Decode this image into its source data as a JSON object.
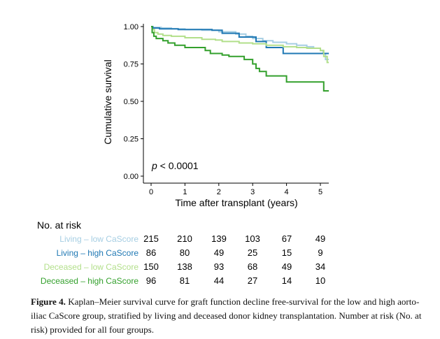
{
  "chart_data": {
    "type": "line",
    "step": true,
    "ylabel": "Cumulative survival",
    "xlabel": "Time after transplant (years)",
    "xlim": [
      0,
      5.25
    ],
    "ylim": [
      0,
      1.0
    ],
    "xticks": [
      0,
      1,
      2,
      3,
      4,
      5
    ],
    "xtick_labels": [
      "0",
      "1",
      "2",
      "3",
      "4",
      "5"
    ],
    "yticks": [
      0,
      0.25,
      0.5,
      0.75,
      1.0
    ],
    "ytick_labels": [
      "0.00",
      "0.25",
      "0.50",
      "0.75",
      "1.00"
    ],
    "annotation_p": "p",
    "annotation_rest": " < 0.0001",
    "grid": false,
    "series": [
      {
        "name": "Living – low CaScore",
        "color": "#a6cee3",
        "x": [
          0,
          0.05,
          0.3,
          0.6,
          1.0,
          1.5,
          2.0,
          2.5,
          2.8,
          3.0,
          3.3,
          3.6,
          4.0,
          4.3,
          4.6,
          4.8,
          5.0,
          5.08,
          5.15,
          5.25
        ],
        "y": [
          1.0,
          0.995,
          0.99,
          0.985,
          0.98,
          0.975,
          0.965,
          0.95,
          0.935,
          0.92,
          0.905,
          0.895,
          0.885,
          0.875,
          0.865,
          0.855,
          0.84,
          0.82,
          0.78,
          0.78
        ]
      },
      {
        "name": "Living – high CaScore",
        "color": "#1f78b4",
        "x": [
          0,
          0.05,
          0.25,
          0.8,
          1.8,
          2.1,
          2.6,
          3.1,
          3.4,
          3.9,
          5.25
        ],
        "y": [
          1.0,
          0.99,
          0.985,
          0.98,
          0.975,
          0.955,
          0.93,
          0.9,
          0.86,
          0.82,
          0.82
        ]
      },
      {
        "name": "Deceased – low CaScore",
        "color": "#b2df8a",
        "x": [
          0,
          0.03,
          0.1,
          0.2,
          0.35,
          0.6,
          1.0,
          1.5,
          1.9,
          2.1,
          2.6,
          3.0,
          3.4,
          3.9,
          4.3,
          4.6,
          5.0,
          5.1,
          5.2,
          5.25
        ],
        "y": [
          1.0,
          0.98,
          0.96,
          0.95,
          0.94,
          0.935,
          0.925,
          0.915,
          0.91,
          0.9,
          0.89,
          0.885,
          0.875,
          0.865,
          0.86,
          0.855,
          0.84,
          0.8,
          0.76,
          0.76
        ]
      },
      {
        "name": "Deceased – high CaScore",
        "color": "#33a02c",
        "x": [
          0,
          0.03,
          0.08,
          0.15,
          0.35,
          0.5,
          0.7,
          1.0,
          1.6,
          1.75,
          2.1,
          2.3,
          2.75,
          3.0,
          3.1,
          3.2,
          3.4,
          3.6,
          3.7,
          4.0,
          4.5,
          5.1,
          5.25
        ],
        "y": [
          1.0,
          0.96,
          0.935,
          0.92,
          0.905,
          0.89,
          0.875,
          0.86,
          0.84,
          0.82,
          0.81,
          0.8,
          0.78,
          0.75,
          0.72,
          0.7,
          0.67,
          0.67,
          0.67,
          0.63,
          0.63,
          0.57,
          0.57
        ]
      }
    ],
    "risk_table": {
      "title": "No. at risk",
      "times": [
        0,
        1,
        2,
        3,
        4,
        5
      ],
      "rows": [
        {
          "label": "Living – low CaScore",
          "color": "#a6cee3",
          "counts": [
            "215",
            "210",
            "139",
            "103",
            "67",
            "49"
          ]
        },
        {
          "label": "Living – high CaScore",
          "color": "#1f78b4",
          "counts": [
            "86",
            "80",
            "49",
            "25",
            "15",
            "9"
          ]
        },
        {
          "label": "Deceased – low CaScore",
          "color": "#b2df8a",
          "counts": [
            "150",
            "138",
            "93",
            "68",
            "49",
            "34"
          ]
        },
        {
          "label": "Deceased – high CaScore",
          "color": "#33a02c",
          "counts": [
            "96",
            "81",
            "44",
            "27",
            "14",
            "10"
          ]
        }
      ]
    }
  },
  "caption": {
    "label": "Figure 4.",
    "text": " Kaplan–Meier survival curve for graft function decline free-survival for the low and high aorto-iliac CaScore group, stratified by living and deceased donor kidney transplantation. Number at risk (No. at risk) provided for all four groups."
  }
}
